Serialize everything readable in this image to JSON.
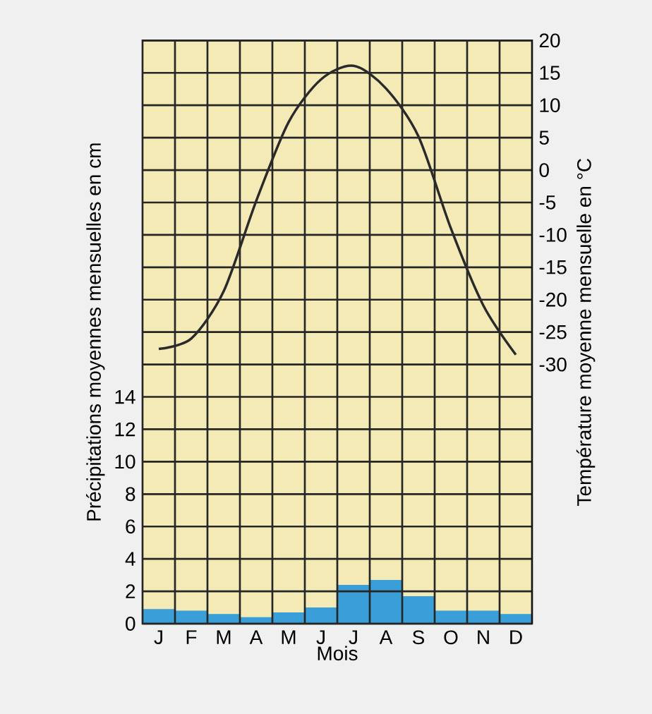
{
  "chart_data": {
    "type": "bar",
    "categories": [
      "J",
      "F",
      "M",
      "A",
      "M",
      "J",
      "J",
      "A",
      "S",
      "O",
      "N",
      "D"
    ],
    "xlabel": "Mois",
    "ylabel": "Précipitations moyennes mensuelles en cm",
    "y2label": "Température moyenne mensuelle en °C",
    "series": [
      {
        "color": "#3a9fd8",
        "values": [
          0.9,
          0.8,
          0.6,
          0.4,
          0.7,
          1.0,
          2.4,
          2.7,
          1.7,
          0.8,
          0.8,
          0.6
        ]
      },
      {
        "type": "line",
        "axis": "y2",
        "color": "#2a2a2a",
        "values": [
          -27.6,
          -26,
          -18.7,
          -4.8,
          7.4,
          14,
          16.1,
          12.6,
          5.2,
          -9,
          -20.9,
          -28.5
        ]
      }
    ],
    "ylim": [
      0,
      36
    ],
    "yticks": [
      0,
      2,
      4,
      6,
      8,
      10,
      12,
      14,
      {
        "value": 16,
        "label": null
      },
      {
        "value": 18,
        "label": null
      },
      {
        "value": 20,
        "label": null
      },
      {
        "value": 22,
        "label": null
      },
      {
        "value": 24,
        "label": null
      },
      {
        "value": 26,
        "label": null
      },
      {
        "value": 28,
        "label": null
      },
      {
        "value": 30,
        "label": null
      },
      {
        "value": 32,
        "label": null
      },
      {
        "value": 34,
        "label": null
      },
      {
        "value": 36,
        "label": null
      }
    ],
    "y2lim": [
      -70,
      20
    ],
    "y2ticks": [
      -30,
      -25,
      -20,
      -15,
      -10,
      -5,
      0,
      5,
      10,
      15,
      20
    ],
    "grid": true
  }
}
